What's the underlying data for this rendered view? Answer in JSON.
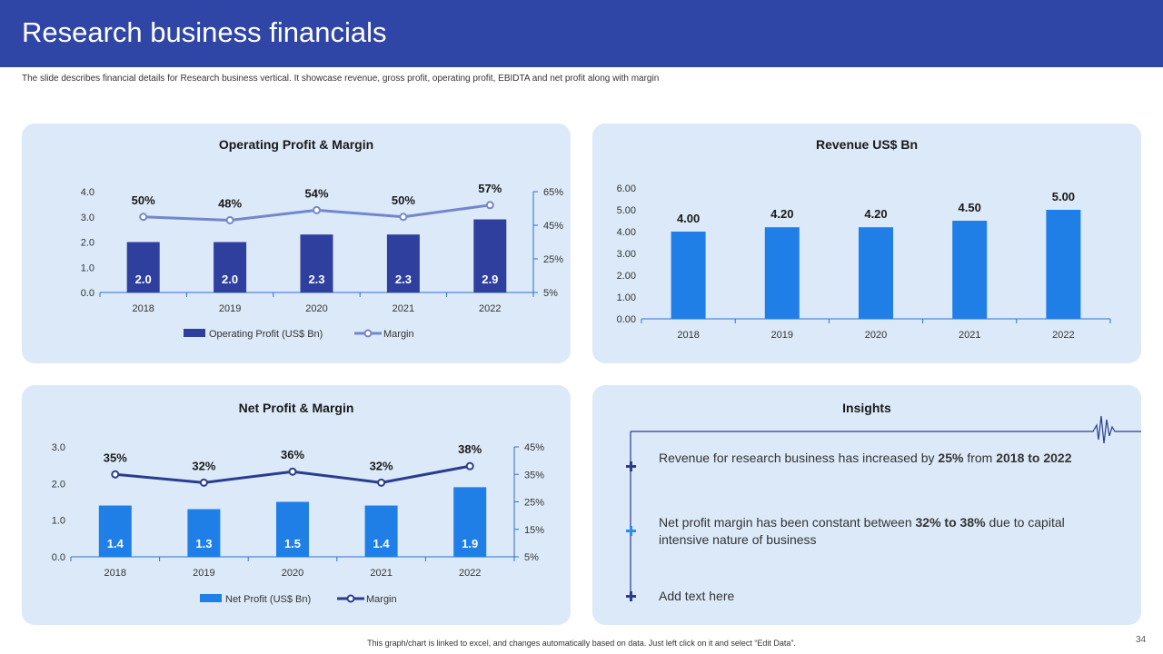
{
  "header": {
    "title": "Research business financials"
  },
  "subtitle": "The slide describes financial details for Research business vertical. It showcase revenue, gross profit, operating profit, EBIDTA and net profit along with margin",
  "colors": {
    "header_bg": "#3046a6",
    "card_bg": "#dce9f8",
    "dark_bar": "#2f3f9e",
    "bright_bar": "#1f7fe6",
    "margin_line_light": "#7486cc",
    "margin_line_dark": "#2b3c8f"
  },
  "chart_data": [
    {
      "id": "operating",
      "type": "bar",
      "title": "Operating Profit & Margin",
      "categories": [
        "2018",
        "2019",
        "2020",
        "2021",
        "2022"
      ],
      "series": [
        {
          "name": "Operating Profit  (US$ Bn)",
          "values": [
            2.0,
            2.0,
            2.3,
            2.3,
            2.9
          ],
          "labels": [
            "2.0",
            "2.0",
            "2.3",
            "2.3",
            "2.9"
          ],
          "kind": "bar",
          "axis": "left"
        },
        {
          "name": "Margin",
          "values": [
            50,
            48,
            54,
            50,
            57
          ],
          "labels": [
            "50%",
            "48%",
            "54%",
            "50%",
            "57%"
          ],
          "kind": "line",
          "axis": "right"
        }
      ],
      "ylim": [
        0,
        4
      ],
      "yticks": [
        "0.0",
        "1.0",
        "2.0",
        "3.0",
        "4.0"
      ],
      "y2lim": [
        5,
        65
      ],
      "y2ticks": [
        "5%",
        "25%",
        "45%",
        "65%"
      ],
      "legend": "bottom"
    },
    {
      "id": "revenue",
      "type": "bar",
      "title": "Revenue US$ Bn",
      "categories": [
        "2018",
        "2019",
        "2020",
        "2021",
        "2022"
      ],
      "series": [
        {
          "values": [
            4.0,
            4.2,
            4.2,
            4.5,
            5.0
          ],
          "labels": [
            "4.00",
            "4.20",
            "4.20",
            "4.50",
            "5.00"
          ],
          "kind": "bar",
          "axis": "left"
        }
      ],
      "ylim": [
        0,
        6
      ],
      "yticks": [
        "0.00",
        "1.00",
        "2.00",
        "3.00",
        "4.00",
        "5.00",
        "6.00"
      ]
    },
    {
      "id": "net",
      "type": "bar",
      "title": "Net Profit & Margin",
      "categories": [
        "2018",
        "2019",
        "2020",
        "2021",
        "2022"
      ],
      "series": [
        {
          "name": "Net Profit  (US$ Bn)",
          "values": [
            1.4,
            1.3,
            1.5,
            1.4,
            1.9
          ],
          "labels": [
            "1.4",
            "1.3",
            "1.5",
            "1.4",
            "1.9"
          ],
          "kind": "bar",
          "axis": "left"
        },
        {
          "name": "Margin",
          "values": [
            35,
            32,
            36,
            32,
            38
          ],
          "labels": [
            "35%",
            "32%",
            "36%",
            "32%",
            "38%"
          ],
          "kind": "line",
          "axis": "right"
        }
      ],
      "ylim": [
        0,
        3
      ],
      "yticks": [
        "0.0",
        "1.0",
        "2.0",
        "3.0"
      ],
      "y2lim": [
        5,
        45
      ],
      "y2ticks": [
        "5%",
        "15%",
        "25%",
        "35%",
        "45%"
      ],
      "legend": "bottom"
    }
  ],
  "insights": {
    "title": "Insights",
    "items": [
      {
        "pre": "Revenue for research business has increased by ",
        "b1": "25%",
        "mid": " from ",
        "b2": "2018 to 2022",
        "post": ""
      },
      {
        "pre": "Net profit margin has been constant between ",
        "b1": "32% to 38%",
        "mid": " due to capital intensive nature of business",
        "b2": "",
        "post": ""
      },
      {
        "pre": "Add text here",
        "b1": "",
        "mid": "",
        "b2": "",
        "post": ""
      }
    ]
  },
  "footer": "This graph/chart is linked to excel, and changes automatically based on data. Just left click on it and select “Edit Data”.",
  "page_number": "34"
}
